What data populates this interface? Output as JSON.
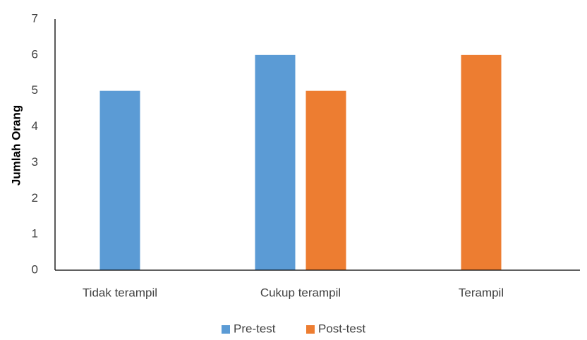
{
  "chart_data": {
    "type": "bar",
    "title": "",
    "xlabel": "",
    "ylabel": "Jumlah Orang",
    "categories": [
      "Tidak terampil",
      "Cukup terampil",
      "Terampil"
    ],
    "series": [
      {
        "name": "Pre-test",
        "color": "#5B9BD5",
        "values": [
          5,
          6,
          0
        ]
      },
      {
        "name": "Post-test",
        "color": "#ED7D31",
        "values": [
          0,
          5,
          6
        ]
      }
    ],
    "ylim": [
      0,
      7
    ],
    "yticks": [
      0,
      1,
      2,
      3,
      4,
      5,
      6,
      7
    ],
    "grid": false,
    "legend_position": "bottom"
  }
}
